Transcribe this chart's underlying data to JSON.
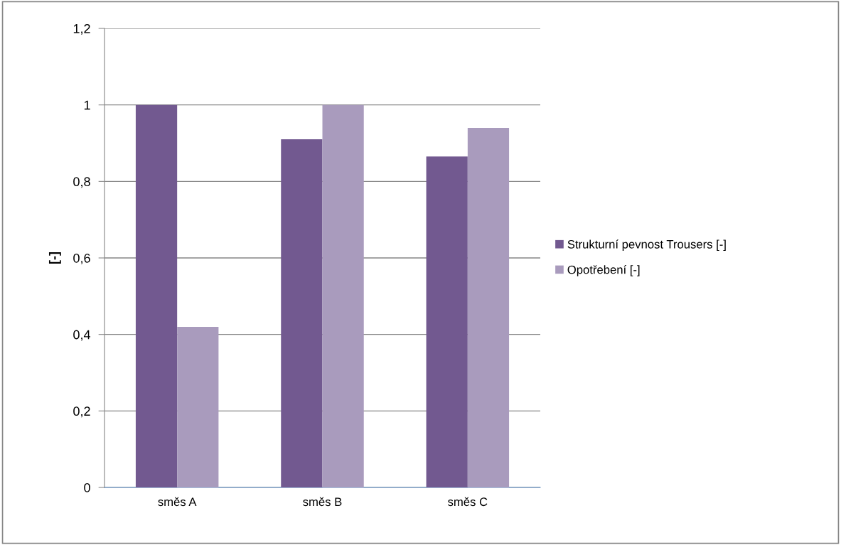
{
  "chart_data": {
    "type": "bar",
    "ylabel": "[-]",
    "categories": [
      "směs A",
      "směs B",
      "směs C"
    ],
    "series": [
      {
        "name": "Strukturní pevnost Trousers [-]",
        "color": "#725990",
        "values": [
          1.0,
          0.91,
          0.865
        ]
      },
      {
        "name": "Opotřebení [-]",
        "color": "#a99bbd",
        "values": [
          0.42,
          1.0,
          0.94
        ]
      }
    ],
    "ylim": [
      0,
      1.2
    ],
    "yticks": [
      {
        "value": 0,
        "label": "0"
      },
      {
        "value": 0.2,
        "label": "0,2"
      },
      {
        "value": 0.4,
        "label": "0,4"
      },
      {
        "value": 0.6,
        "label": "0,6"
      },
      {
        "value": 0.8,
        "label": "0,8"
      },
      {
        "value": 1,
        "label": "1"
      },
      {
        "value": 1.2,
        "label": "1,2"
      }
    ],
    "grid": "y",
    "legend": "right"
  }
}
